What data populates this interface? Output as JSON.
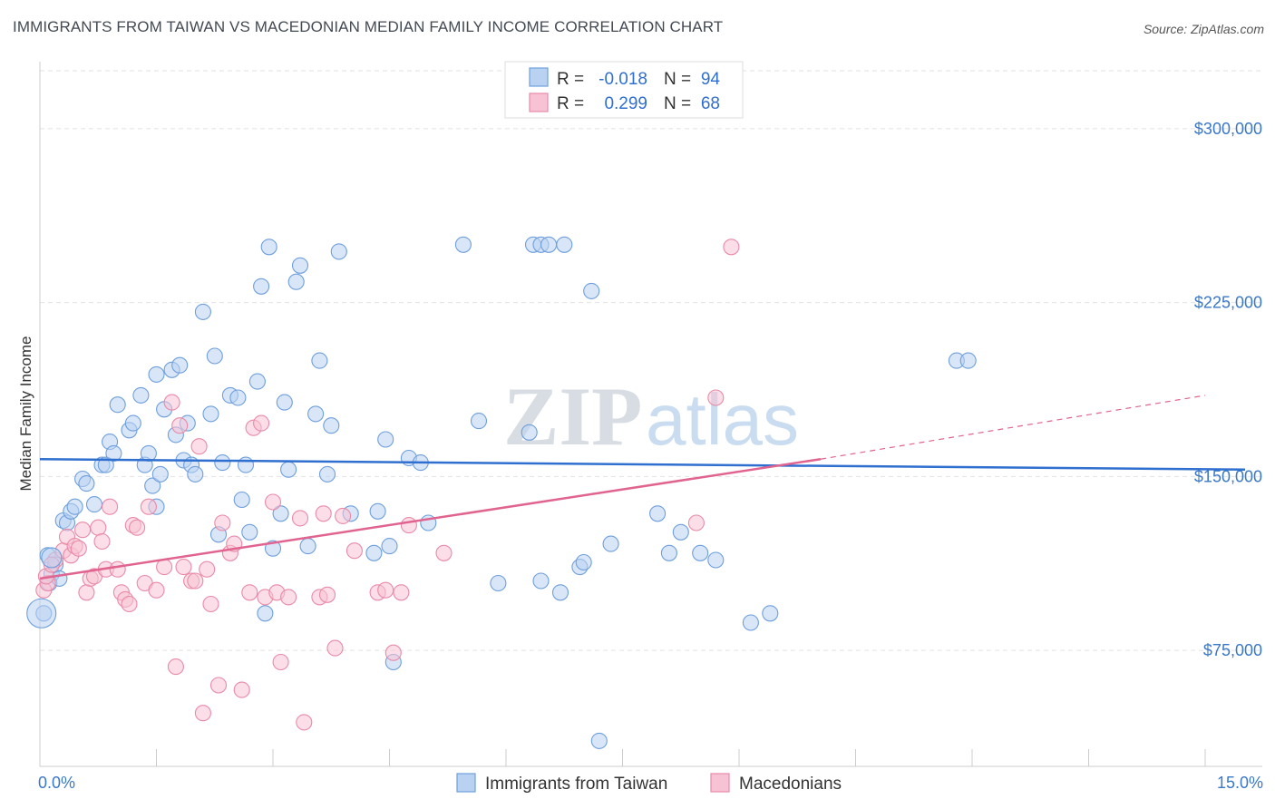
{
  "title": "IMMIGRANTS FROM TAIWAN VS MACEDONIAN MEDIAN FAMILY INCOME CORRELATION CHART",
  "source": "Source: ZipAtlas.com",
  "watermark": {
    "zip": "ZIP",
    "atlas": "atlas"
  },
  "colors": {
    "blue_fill": "#b9d2f2",
    "blue_stroke": "#6e9fdc",
    "blue_line": "#2f6fcf",
    "pink_fill": "#f7c3d4",
    "pink_stroke": "#e98aa8",
    "pink_line": "#e0648f",
    "grid": "#e2e2e2",
    "tick_text": "#3a78c8"
  },
  "legend": {
    "rows": [
      {
        "r_label": "R = ",
        "r_value": "-0.018",
        "n_label": "N = ",
        "n_value": "94"
      },
      {
        "r_label": "R = ",
        "r_value": "0.299",
        "n_label": "N = ",
        "n_value": "68"
      }
    ]
  },
  "chart_data": {
    "type": "scatter",
    "title": "IMMIGRANTS FROM TAIWAN VS MACEDONIAN MEDIAN FAMILY INCOME CORRELATION CHART",
    "xlabel": "",
    "ylabel": "Median Family Income",
    "xlim": [
      0,
      15
    ],
    "ylim": [
      25000,
      325000
    ],
    "x_tick_labels": [
      "0.0%",
      "15.0%"
    ],
    "y_ticks": [
      75000,
      150000,
      225000,
      300000
    ],
    "y_tick_labels": [
      "$75,000",
      "$150,000",
      "$225,000",
      "$300,000"
    ],
    "grid": true,
    "legend_position": "top-center",
    "series": [
      {
        "name": "Immigrants from Taiwan",
        "color": "#6e9fdc",
        "trend": {
          "x": [
            0,
            15
          ],
          "y": [
            157500,
            153000
          ]
        },
        "points": [
          [
            0.1,
            116000
          ],
          [
            0.15,
            108000
          ],
          [
            0.2,
            112000
          ],
          [
            0.3,
            131000
          ],
          [
            0.35,
            130000
          ],
          [
            0.4,
            135000
          ],
          [
            0.45,
            137000
          ],
          [
            0.55,
            149000
          ],
          [
            0.6,
            147000
          ],
          [
            0.7,
            138000
          ],
          [
            0.8,
            155000
          ],
          [
            0.85,
            155000
          ],
          [
            0.9,
            165000
          ],
          [
            0.95,
            160000
          ],
          [
            1.0,
            181000
          ],
          [
            1.15,
            170000
          ],
          [
            1.2,
            173000
          ],
          [
            1.3,
            185000
          ],
          [
            1.35,
            155000
          ],
          [
            1.4,
            160000
          ],
          [
            1.45,
            146000
          ],
          [
            1.5,
            137000
          ],
          [
            1.5,
            194000
          ],
          [
            1.55,
            151000
          ],
          [
            1.6,
            179000
          ],
          [
            1.7,
            196000
          ],
          [
            1.75,
            168000
          ],
          [
            1.8,
            198000
          ],
          [
            1.85,
            157000
          ],
          [
            1.9,
            173000
          ],
          [
            1.95,
            155000
          ],
          [
            2.0,
            151000
          ],
          [
            2.1,
            221000
          ],
          [
            2.2,
            177000
          ],
          [
            2.25,
            202000
          ],
          [
            2.3,
            125000
          ],
          [
            2.35,
            156000
          ],
          [
            2.45,
            185000
          ],
          [
            2.55,
            184000
          ],
          [
            2.6,
            140000
          ],
          [
            2.65,
            155000
          ],
          [
            2.7,
            126000
          ],
          [
            2.8,
            191000
          ],
          [
            2.85,
            232000
          ],
          [
            2.9,
            91000
          ],
          [
            2.95,
            249000
          ],
          [
            3.0,
            119000
          ],
          [
            3.1,
            134000
          ],
          [
            3.15,
            182000
          ],
          [
            3.2,
            153000
          ],
          [
            3.3,
            234000
          ],
          [
            3.35,
            241000
          ],
          [
            3.45,
            120000
          ],
          [
            3.55,
            177000
          ],
          [
            3.6,
            200000
          ],
          [
            3.7,
            151000
          ],
          [
            3.75,
            172000
          ],
          [
            3.85,
            247000
          ],
          [
            4.0,
            134000
          ],
          [
            4.3,
            117000
          ],
          [
            4.35,
            135000
          ],
          [
            4.45,
            166000
          ],
          [
            4.5,
            120000
          ],
          [
            4.55,
            70000
          ],
          [
            4.75,
            158000
          ],
          [
            4.9,
            156000
          ],
          [
            5.0,
            130000
          ],
          [
            5.45,
            250000
          ],
          [
            5.65,
            174000
          ],
          [
            5.9,
            104000
          ],
          [
            6.3,
            169000
          ],
          [
            6.35,
            250000
          ],
          [
            6.45,
            250000
          ],
          [
            6.45,
            105000
          ],
          [
            6.55,
            250000
          ],
          [
            6.7,
            100000
          ],
          [
            6.75,
            250000
          ],
          [
            6.95,
            111000
          ],
          [
            7.0,
            113000
          ],
          [
            7.1,
            230000
          ],
          [
            7.2,
            36000
          ],
          [
            7.35,
            121000
          ],
          [
            7.95,
            134000
          ],
          [
            8.1,
            117000
          ],
          [
            8.25,
            126000
          ],
          [
            8.5,
            117000
          ],
          [
            8.7,
            114000
          ],
          [
            9.15,
            87000
          ],
          [
            9.4,
            91000
          ],
          [
            11.8,
            200000
          ],
          [
            11.95,
            200000
          ],
          [
            0.05,
            91000
          ],
          [
            0.12,
            104000
          ],
          [
            0.25,
            106000
          ]
        ]
      },
      {
        "name": "Macedonians",
        "color": "#e98aa8",
        "trend": {
          "x": [
            0,
            10.05
          ],
          "y": [
            106000,
            157500
          ],
          "dashed_to": {
            "x": 15,
            "y": 185000
          }
        },
        "points": [
          [
            0.05,
            101000
          ],
          [
            0.1,
            104000
          ],
          [
            0.2,
            114000
          ],
          [
            0.3,
            118000
          ],
          [
            0.35,
            124000
          ],
          [
            0.4,
            116000
          ],
          [
            0.45,
            120000
          ],
          [
            0.5,
            119000
          ],
          [
            0.6,
            100000
          ],
          [
            0.65,
            106000
          ],
          [
            0.7,
            107000
          ],
          [
            0.75,
            128000
          ],
          [
            0.8,
            122000
          ],
          [
            0.85,
            110000
          ],
          [
            0.9,
            137000
          ],
          [
            1.0,
            110000
          ],
          [
            1.05,
            100000
          ],
          [
            1.1,
            97000
          ],
          [
            1.15,
            95000
          ],
          [
            1.2,
            129000
          ],
          [
            1.25,
            128000
          ],
          [
            1.35,
            104000
          ],
          [
            1.4,
            137000
          ],
          [
            1.5,
            101000
          ],
          [
            1.6,
            111000
          ],
          [
            1.7,
            182000
          ],
          [
            1.75,
            68000
          ],
          [
            1.8,
            172000
          ],
          [
            1.85,
            111000
          ],
          [
            1.95,
            105000
          ],
          [
            2.0,
            105000
          ],
          [
            2.05,
            163000
          ],
          [
            2.1,
            48000
          ],
          [
            2.15,
            110000
          ],
          [
            2.2,
            95000
          ],
          [
            2.3,
            60000
          ],
          [
            2.35,
            130000
          ],
          [
            2.45,
            117000
          ],
          [
            2.5,
            121000
          ],
          [
            2.6,
            58000
          ],
          [
            2.7,
            100000
          ],
          [
            2.75,
            171000
          ],
          [
            2.85,
            173000
          ],
          [
            2.9,
            98000
          ],
          [
            3.0,
            139000
          ],
          [
            3.05,
            100000
          ],
          [
            3.1,
            70000
          ],
          [
            3.2,
            98000
          ],
          [
            3.35,
            132000
          ],
          [
            3.4,
            44000
          ],
          [
            3.6,
            98000
          ],
          [
            3.65,
            134000
          ],
          [
            3.7,
            99000
          ],
          [
            3.8,
            76000
          ],
          [
            3.9,
            133000
          ],
          [
            4.05,
            118000
          ],
          [
            4.35,
            100000
          ],
          [
            4.45,
            101000
          ],
          [
            4.55,
            74000
          ],
          [
            4.65,
            100000
          ],
          [
            4.75,
            129000
          ],
          [
            5.2,
            117000
          ],
          [
            8.45,
            130000
          ],
          [
            8.7,
            184000
          ],
          [
            8.9,
            249000
          ],
          [
            0.08,
            107000
          ],
          [
            0.15,
            112000
          ],
          [
            0.55,
            127000
          ]
        ]
      }
    ]
  },
  "bottom_legend": [
    "Immigrants from Taiwan",
    "Macedonians"
  ]
}
